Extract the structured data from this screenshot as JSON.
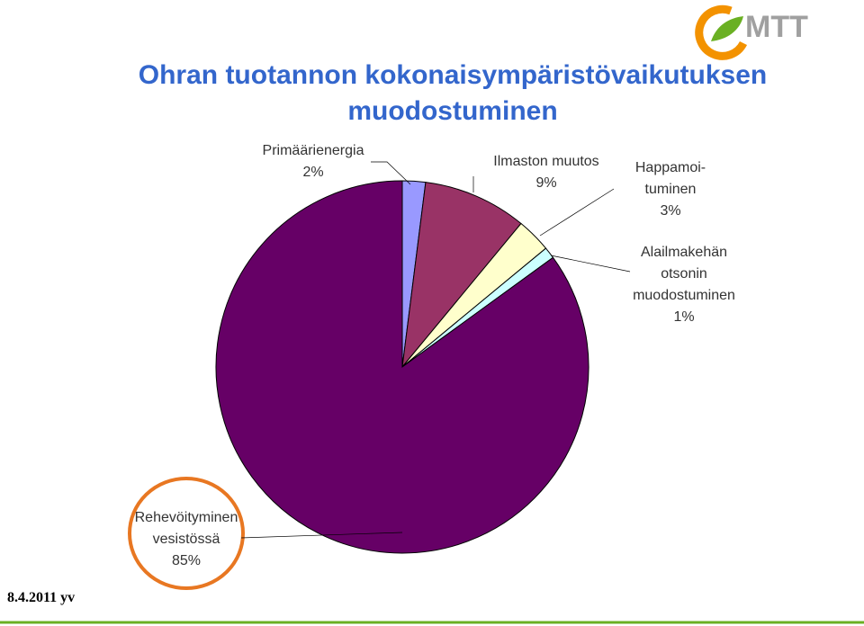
{
  "chart_data": {
    "type": "pie",
    "title": "Ohran tuotannon kokonaisympäristövaikutuksen muodostuminen",
    "categories": [
      "Primäärienergia",
      "Ilmaston muutos",
      "Happamoi-\ntuminen",
      "Alailmakehän\notsonin\nmuodostuminen",
      "Rehevöityminen\nvesistössä"
    ],
    "values": [
      2,
      9,
      3,
      1,
      85
    ],
    "value_labels": [
      "2%",
      "9%",
      "3%",
      "1%",
      "85%"
    ],
    "colors": [
      "#9999ff",
      "#993366",
      "#ffffcc",
      "#ccffff",
      "#660066"
    ]
  },
  "footer": "8.4.2011 yv",
  "logo": "MTT"
}
